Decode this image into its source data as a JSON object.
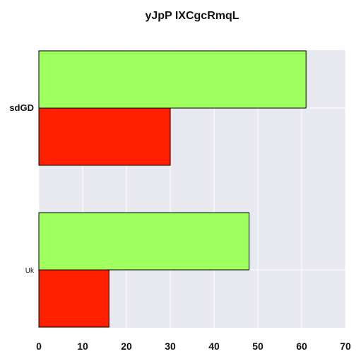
{
  "chart_data": {
    "type": "bar",
    "orientation": "horizontal",
    "title": "yJpP IXCgcRmqL",
    "xlabel": "",
    "ylabel": "",
    "categories": [
      "sdGD",
      "Uk"
    ],
    "series": [
      {
        "values": [
          61,
          48
        ],
        "color": "#9eff5e"
      },
      {
        "values": [
          30,
          16
        ],
        "color": "#ff2000"
      }
    ],
    "xlim": [
      0,
      70
    ],
    "xticks": [
      0,
      10,
      20,
      30,
      40,
      50,
      60,
      70
    ],
    "grid": true,
    "background": "#e8e8f0"
  }
}
